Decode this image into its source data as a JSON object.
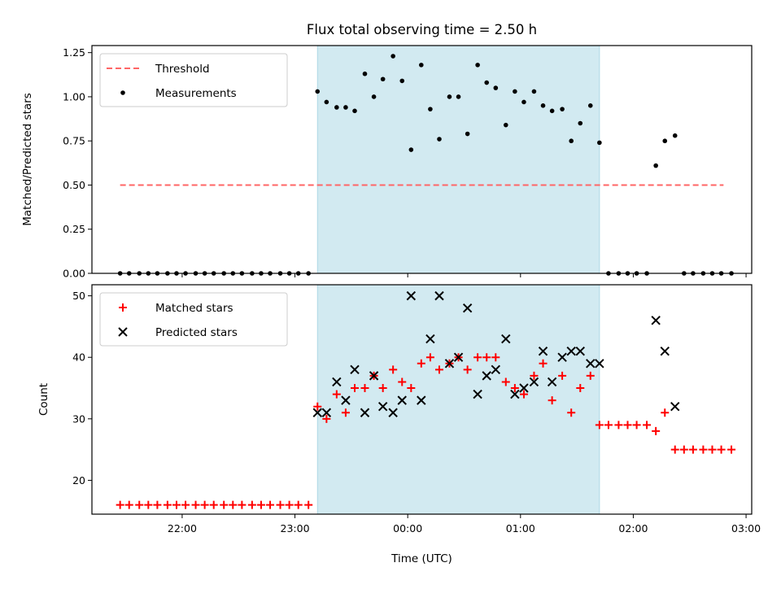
{
  "figure": {
    "title": "Flux total observing time = 2.50 h",
    "xlabel": "Time (UTC)",
    "colors": {
      "span": "#add8e6",
      "threshold": "#ff6666",
      "matched": "#ff0000",
      "predicted": "#000000",
      "measurements": "#000000"
    }
  },
  "chart_data": [
    {
      "type": "scatter",
      "panel": "top",
      "title": "Flux total observing time = 2.50 h",
      "xlabel": "",
      "ylabel": "Matched/Predicted stars",
      "x_unit": "hours since 21:00 UTC",
      "xlim": [
        0.2,
        6.05
      ],
      "x_ticks": [
        {
          "x": 1,
          "label": "22:00"
        },
        {
          "x": 2,
          "label": "23:00"
        },
        {
          "x": 3,
          "label": "00:00"
        },
        {
          "x": 4,
          "label": "01:00"
        },
        {
          "x": 5,
          "label": "02:00"
        },
        {
          "x": 6,
          "label": "03:00"
        }
      ],
      "ylim": [
        0,
        1.29
      ],
      "y_ticks": [
        0.0,
        0.25,
        0.5,
        0.75,
        1.0,
        1.25
      ],
      "y_tick_labels": [
        "0.00",
        "0.25",
        "0.50",
        "0.75",
        "1.00",
        "1.25"
      ],
      "shaded_span": [
        2.2,
        4.7
      ],
      "legend": {
        "position": "upper left",
        "entries": [
          "Threshold",
          "Measurements"
        ]
      },
      "threshold": {
        "name": "Threshold",
        "x": [
          0.45,
          5.8
        ],
        "y": 0.5,
        "style": "dashed"
      },
      "series": [
        {
          "name": "Measurements",
          "marker": "dot",
          "points": [
            [
              0.45,
              0
            ],
            [
              0.53,
              0
            ],
            [
              0.62,
              0
            ],
            [
              0.7,
              0
            ],
            [
              0.78,
              0
            ],
            [
              0.87,
              0
            ],
            [
              0.95,
              0
            ],
            [
              1.03,
              0
            ],
            [
              1.12,
              0
            ],
            [
              1.2,
              0
            ],
            [
              1.28,
              0
            ],
            [
              1.37,
              0
            ],
            [
              1.45,
              0
            ],
            [
              1.53,
              0
            ],
            [
              1.62,
              0
            ],
            [
              1.7,
              0
            ],
            [
              1.78,
              0
            ],
            [
              1.87,
              0
            ],
            [
              1.95,
              0
            ],
            [
              2.03,
              0
            ],
            [
              2.12,
              0
            ],
            [
              2.2,
              1.03
            ],
            [
              2.28,
              0.97
            ],
            [
              2.37,
              0.94
            ],
            [
              2.45,
              0.94
            ],
            [
              2.53,
              0.92
            ],
            [
              2.62,
              1.13
            ],
            [
              2.7,
              1.0
            ],
            [
              2.78,
              1.1
            ],
            [
              2.87,
              1.23
            ],
            [
              2.95,
              1.09
            ],
            [
              3.03,
              0.7
            ],
            [
              3.12,
              1.18
            ],
            [
              3.2,
              0.93
            ],
            [
              3.28,
              0.76
            ],
            [
              3.37,
              1.0
            ],
            [
              3.45,
              1.0
            ],
            [
              3.53,
              0.79
            ],
            [
              3.62,
              1.18
            ],
            [
              3.7,
              1.08
            ],
            [
              3.78,
              1.05
            ],
            [
              3.87,
              0.84
            ],
            [
              3.95,
              1.03
            ],
            [
              4.03,
              0.97
            ],
            [
              4.12,
              1.03
            ],
            [
              4.2,
              0.95
            ],
            [
              4.28,
              0.92
            ],
            [
              4.37,
              0.93
            ],
            [
              4.45,
              0.75
            ],
            [
              4.53,
              0.85
            ],
            [
              4.62,
              0.95
            ],
            [
              4.7,
              0.74
            ],
            [
              4.78,
              0
            ],
            [
              4.87,
              0
            ],
            [
              4.95,
              0
            ],
            [
              5.03,
              0
            ],
            [
              5.12,
              0
            ],
            [
              5.2,
              0.61
            ],
            [
              5.28,
              0.75
            ],
            [
              5.37,
              0.78
            ],
            [
              5.45,
              0
            ],
            [
              5.53,
              0
            ],
            [
              5.62,
              0
            ],
            [
              5.7,
              0
            ],
            [
              5.78,
              0
            ],
            [
              5.87,
              0
            ]
          ]
        }
      ]
    },
    {
      "type": "scatter",
      "panel": "bottom",
      "xlabel": "Time (UTC)",
      "ylabel": "Count",
      "x_unit": "hours since 21:00 UTC",
      "xlim": [
        0.2,
        6.05
      ],
      "x_ticks": [
        {
          "x": 1,
          "label": "22:00"
        },
        {
          "x": 2,
          "label": "23:00"
        },
        {
          "x": 3,
          "label": "00:00"
        },
        {
          "x": 4,
          "label": "01:00"
        },
        {
          "x": 5,
          "label": "02:00"
        },
        {
          "x": 6,
          "label": "03:00"
        }
      ],
      "ylim": [
        14.5,
        51.8
      ],
      "y_ticks": [
        20,
        30,
        40,
        50
      ],
      "y_tick_labels": [
        "20",
        "30",
        "40",
        "50"
      ],
      "shaded_span": [
        2.2,
        4.7
      ],
      "legend": {
        "position": "upper left",
        "entries": [
          "Matched stars",
          "Predicted stars"
        ]
      },
      "series": [
        {
          "name": "Matched stars",
          "marker": "plus",
          "points": [
            [
              0.45,
              16
            ],
            [
              0.53,
              16
            ],
            [
              0.62,
              16
            ],
            [
              0.7,
              16
            ],
            [
              0.78,
              16
            ],
            [
              0.87,
              16
            ],
            [
              0.95,
              16
            ],
            [
              1.03,
              16
            ],
            [
              1.12,
              16
            ],
            [
              1.2,
              16
            ],
            [
              1.28,
              16
            ],
            [
              1.37,
              16
            ],
            [
              1.45,
              16
            ],
            [
              1.53,
              16
            ],
            [
              1.62,
              16
            ],
            [
              1.7,
              16
            ],
            [
              1.78,
              16
            ],
            [
              1.87,
              16
            ],
            [
              1.95,
              16
            ],
            [
              2.03,
              16
            ],
            [
              2.12,
              16
            ],
            [
              2.2,
              32
            ],
            [
              2.28,
              30
            ],
            [
              2.37,
              34
            ],
            [
              2.45,
              31
            ],
            [
              2.53,
              35
            ],
            [
              2.62,
              35
            ],
            [
              2.7,
              37
            ],
            [
              2.78,
              35
            ],
            [
              2.87,
              38
            ],
            [
              2.95,
              36
            ],
            [
              3.03,
              35
            ],
            [
              3.12,
              39
            ],
            [
              3.2,
              40
            ],
            [
              3.28,
              38
            ],
            [
              3.37,
              39
            ],
            [
              3.45,
              40
            ],
            [
              3.53,
              38
            ],
            [
              3.62,
              40
            ],
            [
              3.7,
              40
            ],
            [
              3.78,
              40
            ],
            [
              3.87,
              36
            ],
            [
              3.95,
              35
            ],
            [
              4.03,
              34
            ],
            [
              4.12,
              37
            ],
            [
              4.2,
              39
            ],
            [
              4.28,
              33
            ],
            [
              4.37,
              37
            ],
            [
              4.45,
              31
            ],
            [
              4.53,
              35
            ],
            [
              4.62,
              37
            ],
            [
              4.7,
              29
            ],
            [
              4.78,
              29
            ],
            [
              4.87,
              29
            ],
            [
              4.95,
              29
            ],
            [
              5.03,
              29
            ],
            [
              5.12,
              29
            ],
            [
              5.2,
              28
            ],
            [
              5.28,
              31
            ],
            [
              5.37,
              25
            ],
            [
              5.45,
              25
            ],
            [
              5.53,
              25
            ],
            [
              5.62,
              25
            ],
            [
              5.7,
              25
            ],
            [
              5.78,
              25
            ],
            [
              5.87,
              25
            ]
          ]
        },
        {
          "name": "Predicted stars",
          "marker": "x",
          "points": [
            [
              2.2,
              31
            ],
            [
              2.28,
              31
            ],
            [
              2.37,
              36
            ],
            [
              2.45,
              33
            ],
            [
              2.53,
              38
            ],
            [
              2.62,
              31
            ],
            [
              2.7,
              37
            ],
            [
              2.78,
              32
            ],
            [
              2.87,
              31
            ],
            [
              2.95,
              33
            ],
            [
              3.03,
              50
            ],
            [
              3.12,
              33
            ],
            [
              3.2,
              43
            ],
            [
              3.28,
              50
            ],
            [
              3.37,
              39
            ],
            [
              3.45,
              40
            ],
            [
              3.53,
              48
            ],
            [
              3.62,
              34
            ],
            [
              3.7,
              37
            ],
            [
              3.78,
              38
            ],
            [
              3.87,
              43
            ],
            [
              3.95,
              34
            ],
            [
              4.03,
              35
            ],
            [
              4.12,
              36
            ],
            [
              4.2,
              41
            ],
            [
              4.28,
              36
            ],
            [
              4.37,
              40
            ],
            [
              4.45,
              41
            ],
            [
              4.53,
              41
            ],
            [
              4.62,
              39
            ],
            [
              4.7,
              39
            ],
            [
              5.2,
              46
            ],
            [
              5.28,
              41
            ],
            [
              5.37,
              32
            ]
          ]
        }
      ]
    }
  ]
}
